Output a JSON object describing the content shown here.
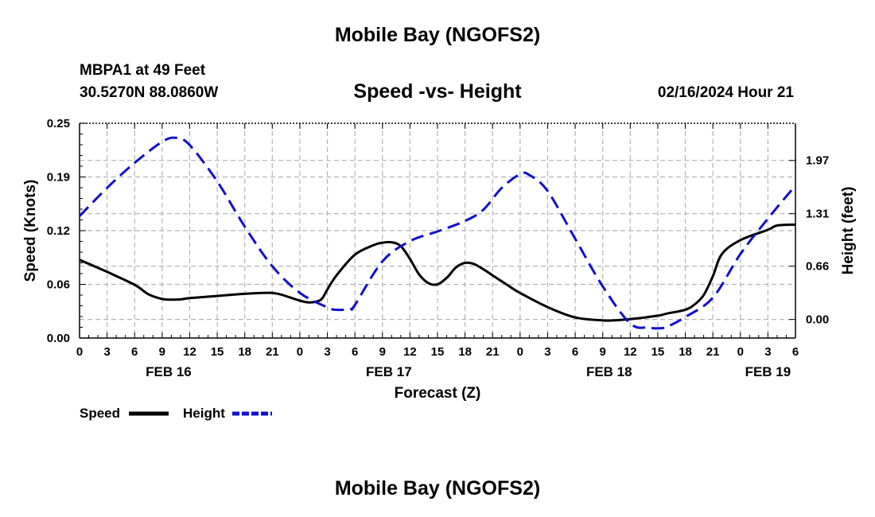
{
  "page": {
    "title": "Mobile Bay (NGOFS2)",
    "bottom_title": "Mobile Bay (NGOFS2)",
    "station": "MBPA1 at 49 Feet",
    "coordinates": "30.5270N  88.0860W",
    "subtitle": "Speed -vs- Height",
    "datetime": "02/16/2024 Hour 21"
  },
  "legend": {
    "speed_label": "Speed",
    "height_label": "Height"
  },
  "colors": {
    "speed": "#000000",
    "height": "#1010cc",
    "grid": "#b4b4b4"
  },
  "chart_data": {
    "type": "line",
    "title": "Speed -vs- Height",
    "xlabel": "Forecast (Z)",
    "ylabel_left": "Speed (Knots)",
    "ylabel_right": "Height (feet)",
    "grid": true,
    "x_unit": "hours since FEB 16 00Z",
    "xlim": [
      0,
      78
    ],
    "ylim_left": [
      0,
      0.25
    ],
    "ylim_right": [
      -0.23,
      2.43
    ],
    "x_ticks": [
      {
        "x": 0,
        "label": "0"
      },
      {
        "x": 3,
        "label": "3"
      },
      {
        "x": 6,
        "label": "6"
      },
      {
        "x": 9,
        "label": "9"
      },
      {
        "x": 12,
        "label": "12"
      },
      {
        "x": 15,
        "label": "15"
      },
      {
        "x": 18,
        "label": "18"
      },
      {
        "x": 21,
        "label": "21"
      },
      {
        "x": 24,
        "label": "0"
      },
      {
        "x": 27,
        "label": "3"
      },
      {
        "x": 30,
        "label": "6"
      },
      {
        "x": 33,
        "label": "9"
      },
      {
        "x": 36,
        "label": "12"
      },
      {
        "x": 39,
        "label": "15"
      },
      {
        "x": 42,
        "label": "18"
      },
      {
        "x": 45,
        "label": "21"
      },
      {
        "x": 48,
        "label": "0"
      },
      {
        "x": 51,
        "label": "3"
      },
      {
        "x": 54,
        "label": "6"
      },
      {
        "x": 57,
        "label": "9"
      },
      {
        "x": 60,
        "label": "12"
      },
      {
        "x": 63,
        "label": "15"
      },
      {
        "x": 66,
        "label": "18"
      },
      {
        "x": 69,
        "label": "21"
      },
      {
        "x": 72,
        "label": "0"
      },
      {
        "x": 75,
        "label": "3"
      },
      {
        "x": 78,
        "label": "6"
      }
    ],
    "date_labels": [
      {
        "x": 9.7,
        "label": "FEB 16"
      },
      {
        "x": 33.7,
        "label": "FEB 17"
      },
      {
        "x": 57.7,
        "label": "FEB 18"
      },
      {
        "x": 75,
        "label": "FEB 19"
      }
    ],
    "y_ticks_left": [
      {
        "value": 0.0,
        "label": "0.00"
      },
      {
        "value": 0.0625,
        "label": "0.06"
      },
      {
        "value": 0.125,
        "label": "0.12"
      },
      {
        "value": 0.1875,
        "label": "0.19"
      },
      {
        "value": 0.25,
        "label": "0.25"
      }
    ],
    "y_ticks_right": [
      {
        "value": 0.0,
        "label": "0.00"
      },
      {
        "value": 0.66,
        "label": "0.66"
      },
      {
        "value": 1.31,
        "label": "1.31"
      },
      {
        "value": 1.97,
        "label": "1.97"
      }
    ],
    "series": [
      {
        "name": "Speed",
        "axis": "left",
        "style": "solid",
        "x": [
          0,
          3,
          6,
          7.5,
          9,
          10,
          11,
          12,
          15,
          18,
          20,
          21,
          22,
          24,
          25,
          26,
          26.5,
          27,
          28,
          30,
          32,
          33,
          34,
          35,
          36,
          37,
          38,
          39,
          40,
          41,
          42,
          43,
          44,
          45,
          46,
          47,
          48,
          51,
          54,
          57,
          58,
          60,
          63,
          64,
          66,
          67,
          68,
          69,
          70,
          72,
          75,
          76,
          78
        ],
        "y": [
          0.091,
          0.077,
          0.062,
          0.051,
          0.0455,
          0.0447,
          0.045,
          0.0465,
          0.049,
          0.0515,
          0.0525,
          0.0525,
          0.0505,
          0.0435,
          0.0415,
          0.043,
          0.047,
          0.0565,
          0.073,
          0.097,
          0.108,
          0.111,
          0.1115,
          0.107,
          0.092,
          0.074,
          0.064,
          0.0625,
          0.07,
          0.082,
          0.0875,
          0.086,
          0.08,
          0.073,
          0.066,
          0.059,
          0.0525,
          0.036,
          0.024,
          0.0205,
          0.0205,
          0.022,
          0.026,
          0.0285,
          0.033,
          0.039,
          0.05,
          0.072,
          0.098,
          0.114,
          0.126,
          0.131,
          0.132
        ]
      },
      {
        "name": "Height",
        "axis": "right",
        "style": "dashed",
        "x": [
          0,
          3,
          6,
          9,
          10.5,
          12,
          15,
          18,
          21,
          24,
          27,
          28,
          29.5,
          30,
          33,
          36,
          39,
          42,
          44,
          46,
          48,
          49,
          51,
          54,
          57,
          60,
          62,
          63,
          64,
          66,
          69,
          72,
          75,
          78
        ],
        "y": [
          1.28,
          1.63,
          1.94,
          2.2,
          2.25,
          2.16,
          1.71,
          1.15,
          0.66,
          0.33,
          0.15,
          0.12,
          0.13,
          0.18,
          0.72,
          0.97,
          1.09,
          1.22,
          1.36,
          1.63,
          1.8,
          1.79,
          1.59,
          1.0,
          0.41,
          -0.05,
          -0.1,
          -0.11,
          -0.09,
          0.03,
          0.27,
          0.81,
          1.25,
          1.66
        ]
      }
    ]
  }
}
